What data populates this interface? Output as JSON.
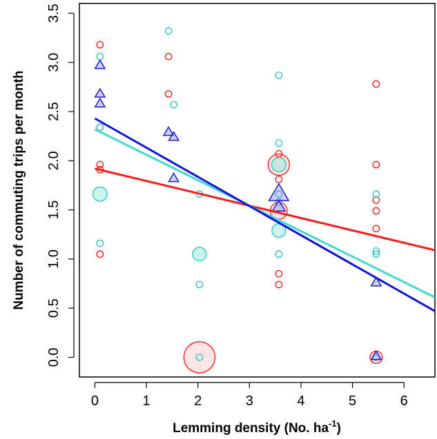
{
  "chart_data": {
    "type": "scatter",
    "title": "",
    "xlabel": "Lemming density (No. ha",
    "xlabel_sup": "-1",
    "xlabel_end": ")",
    "ylabel": "Number of commuting trips per month",
    "xlim": [
      -0.3,
      6.6
    ],
    "ylim": [
      -0.2,
      3.6
    ],
    "x_ticks": [
      0,
      1,
      2,
      3,
      4,
      5,
      6
    ],
    "y_ticks": [
      0.0,
      0.5,
      1.0,
      1.5,
      2.0,
      2.5,
      3.0,
      3.5
    ],
    "y_tick_labels": [
      "0.0",
      "0.5",
      "1.0",
      "1.5",
      "2.0",
      "2.5",
      "3.0",
      "3.5"
    ],
    "grid": false,
    "legend": "none",
    "series": [
      {
        "color": "#ff2020",
        "fill": "rgba(255,200,200,0.45)",
        "shape": "circle",
        "points": [
          {
            "x": 0.1,
            "y": 3.18,
            "s": 1
          },
          {
            "x": 0.1,
            "y": 2.34,
            "s": 1
          },
          {
            "x": 0.1,
            "y": 1.96,
            "s": 1
          },
          {
            "x": 0.1,
            "y": 1.91,
            "s": 1
          },
          {
            "x": 0.1,
            "y": 1.05,
            "s": 1
          },
          {
            "x": 1.43,
            "y": 3.06,
            "s": 1
          },
          {
            "x": 1.43,
            "y": 2.68,
            "s": 1
          },
          {
            "x": 2.03,
            "y": 0.0,
            "s": 4.8
          },
          {
            "x": 3.57,
            "y": 1.96,
            "s": 3.3
          },
          {
            "x": 3.57,
            "y": 2.07,
            "s": 1
          },
          {
            "x": 3.57,
            "y": 1.81,
            "s": 1
          },
          {
            "x": 3.57,
            "y": 1.49,
            "s": 2.6
          },
          {
            "x": 3.57,
            "y": 0.85,
            "s": 1
          },
          {
            "x": 3.57,
            "y": 0.74,
            "s": 1
          },
          {
            "x": 5.46,
            "y": 2.78,
            "s": 1
          },
          {
            "x": 5.46,
            "y": 1.96,
            "s": 1
          },
          {
            "x": 5.46,
            "y": 1.6,
            "s": 1
          },
          {
            "x": 5.46,
            "y": 1.49,
            "s": 1
          },
          {
            "x": 5.46,
            "y": 1.31,
            "s": 1
          },
          {
            "x": 5.46,
            "y": 0.0,
            "s": 1.9
          }
        ]
      },
      {
        "color": "#30c8c0",
        "fill": "rgba(140,230,220,0.45)",
        "shape": "circle",
        "points": [
          {
            "x": 0.1,
            "y": 3.06,
            "s": 1
          },
          {
            "x": 0.1,
            "y": 2.34,
            "s": 1
          },
          {
            "x": 0.1,
            "y": 1.66,
            "s": 2.2
          },
          {
            "x": 0.1,
            "y": 1.16,
            "s": 1
          },
          {
            "x": 1.43,
            "y": 3.32,
            "s": 1
          },
          {
            "x": 1.53,
            "y": 2.57,
            "s": 1
          },
          {
            "x": 2.03,
            "y": 1.66,
            "s": 1
          },
          {
            "x": 2.03,
            "y": 1.05,
            "s": 2.1
          },
          {
            "x": 2.03,
            "y": 0.74,
            "s": 1
          },
          {
            "x": 2.03,
            "y": 0.0,
            "s": 1
          },
          {
            "x": 3.57,
            "y": 2.87,
            "s": 1
          },
          {
            "x": 3.57,
            "y": 2.18,
            "s": 1
          },
          {
            "x": 3.57,
            "y": 1.96,
            "s": 2.2
          },
          {
            "x": 3.57,
            "y": 1.66,
            "s": 1
          },
          {
            "x": 3.57,
            "y": 1.58,
            "s": 1
          },
          {
            "x": 3.57,
            "y": 1.29,
            "s": 2.1
          },
          {
            "x": 3.57,
            "y": 1.05,
            "s": 1
          },
          {
            "x": 5.46,
            "y": 1.66,
            "s": 1
          },
          {
            "x": 5.46,
            "y": 1.08,
            "s": 1
          },
          {
            "x": 5.46,
            "y": 1.05,
            "s": 1
          },
          {
            "x": 5.46,
            "y": 0.0,
            "s": 1
          }
        ]
      },
      {
        "color": "#1a1acc",
        "fill": "rgba(120,120,230,0.35)",
        "shape": "triangle",
        "points": [
          {
            "x": 0.1,
            "y": 2.97,
            "s": 1
          },
          {
            "x": 0.1,
            "y": 2.68,
            "s": 1
          },
          {
            "x": 0.1,
            "y": 2.58,
            "s": 1
          },
          {
            "x": 1.43,
            "y": 2.29,
            "s": 1
          },
          {
            "x": 1.53,
            "y": 2.24,
            "s": 1
          },
          {
            "x": 1.53,
            "y": 1.82,
            "s": 1
          },
          {
            "x": 3.57,
            "y": 1.66,
            "s": 2.0
          },
          {
            "x": 3.57,
            "y": 1.53,
            "s": 1.3
          },
          {
            "x": 5.46,
            "y": 0.76,
            "s": 1
          },
          {
            "x": 5.46,
            "y": 0.01,
            "s": 1
          }
        ]
      }
    ],
    "fit_lines": [
      {
        "color": "#ff1a1a",
        "x": [
          0.0,
          6.6
        ],
        "y": [
          1.92,
          1.09
        ]
      },
      {
        "color": "#40d8d0",
        "x": [
          0.0,
          6.6
        ],
        "y": [
          2.32,
          0.61
        ]
      },
      {
        "color": "#1010dd",
        "x": [
          0.0,
          6.6
        ],
        "y": [
          2.43,
          0.47
        ]
      }
    ]
  }
}
